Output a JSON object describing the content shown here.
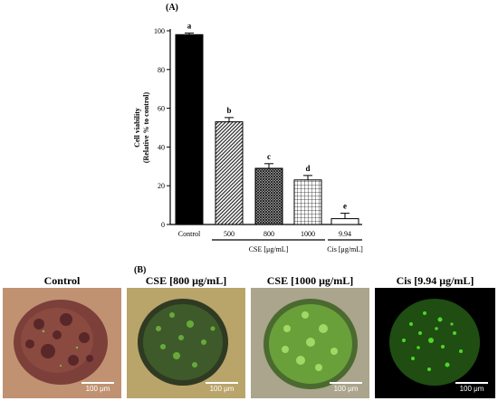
{
  "panel_a_label": "(A)",
  "panel_b_label": "(B)",
  "chart_data": {
    "type": "bar",
    "ylabel": "Cell viability\n(Relative % to control)",
    "ylim": [
      0,
      100
    ],
    "yticks": [
      "0",
      "20",
      "40",
      "60",
      "80",
      "100"
    ],
    "categories": [
      "Control",
      "500",
      "800",
      "1000",
      "9.94"
    ],
    "values": [
      98,
      53,
      29,
      23,
      3
    ],
    "errors": [
      0.8,
      2.2,
      2.4,
      2.3,
      2.8
    ],
    "significance": [
      "a",
      "b",
      "c",
      "d",
      "e"
    ],
    "patterns": [
      "solid",
      "diagonal",
      "dense-crosshatch",
      "grid",
      "none"
    ],
    "groups": [
      {
        "label": "CSE [μg/mL]",
        "from": 1,
        "to": 3
      },
      {
        "label": "Cis [μg/mL]",
        "from": 4,
        "to": 4
      }
    ]
  },
  "images": [
    {
      "title": "Control",
      "scale_bar": "100 μm"
    },
    {
      "title": "CSE [800 μg/mL]",
      "scale_bar": "100 μm"
    },
    {
      "title": "CSE [1000 μg/mL]",
      "scale_bar": "100 μm"
    },
    {
      "title": "Cis [9.94 μg/mL]",
      "scale_bar": "100 μm"
    }
  ]
}
